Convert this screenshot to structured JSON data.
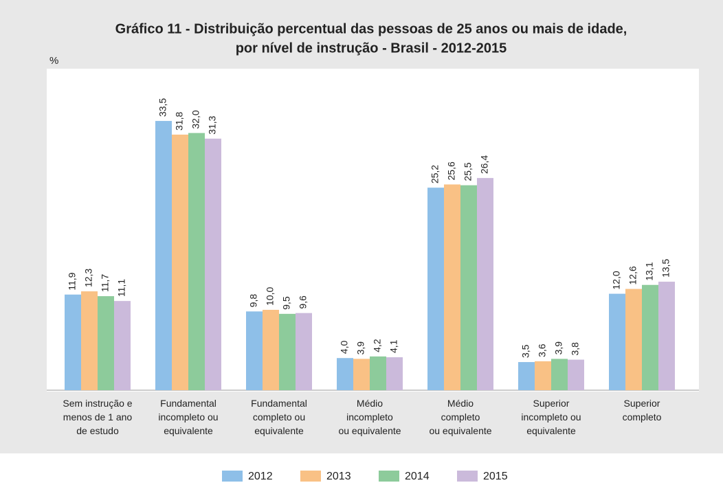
{
  "chart_data": {
    "type": "bar",
    "title": "Gráfico 11 - Distribuição percentual das pessoas de 25 anos ou mais de idade,",
    "subtitle": "por nível de instrução - Brasil - 2012-2015",
    "y_label": "%",
    "categories": [
      "Sem instrução e\nmenos de 1 ano\nde estudo",
      "Fundamental\nincompleto ou\nequivalente",
      "Fundamental\ncompleto ou\nequivalente",
      "Médio\nincompleto\nou equivalente",
      "Médio\ncompleto\nou equivalente",
      "Superior\nincompleto ou\nequivalente",
      "Superior\ncompleto"
    ],
    "series": [
      {
        "name": "2012",
        "color": "#8ebfe8",
        "values": [
          11.9,
          33.5,
          9.8,
          4.0,
          25.2,
          3.5,
          12.0
        ],
        "value_labels": [
          "11,9",
          "33,5",
          "9,8",
          "4,0",
          "25,2",
          "3,5",
          "12,0"
        ]
      },
      {
        "name": "2013",
        "color": "#f9c185",
        "values": [
          12.3,
          31.8,
          10.0,
          3.9,
          25.6,
          3.6,
          12.6
        ],
        "value_labels": [
          "12,3",
          "31,8",
          "10,0",
          "3,9",
          "25,6",
          "3,6",
          "12,6"
        ]
      },
      {
        "name": "2014",
        "color": "#8dcb9b",
        "values": [
          11.7,
          32.0,
          9.5,
          4.2,
          25.5,
          3.9,
          13.1
        ],
        "value_labels": [
          "11,7",
          "32,0",
          "9,5",
          "4,2",
          "25,5",
          "3,9",
          "13,1"
        ]
      },
      {
        "name": "2015",
        "color": "#cbbadb",
        "values": [
          11.1,
          31.3,
          9.6,
          4.1,
          26.4,
          3.8,
          13.5
        ],
        "value_labels": [
          "11,1",
          "31,3",
          "9,6",
          "4,1",
          "26,4",
          "3,8",
          "13,5"
        ]
      }
    ],
    "ylim": [
      0,
      40
    ]
  }
}
